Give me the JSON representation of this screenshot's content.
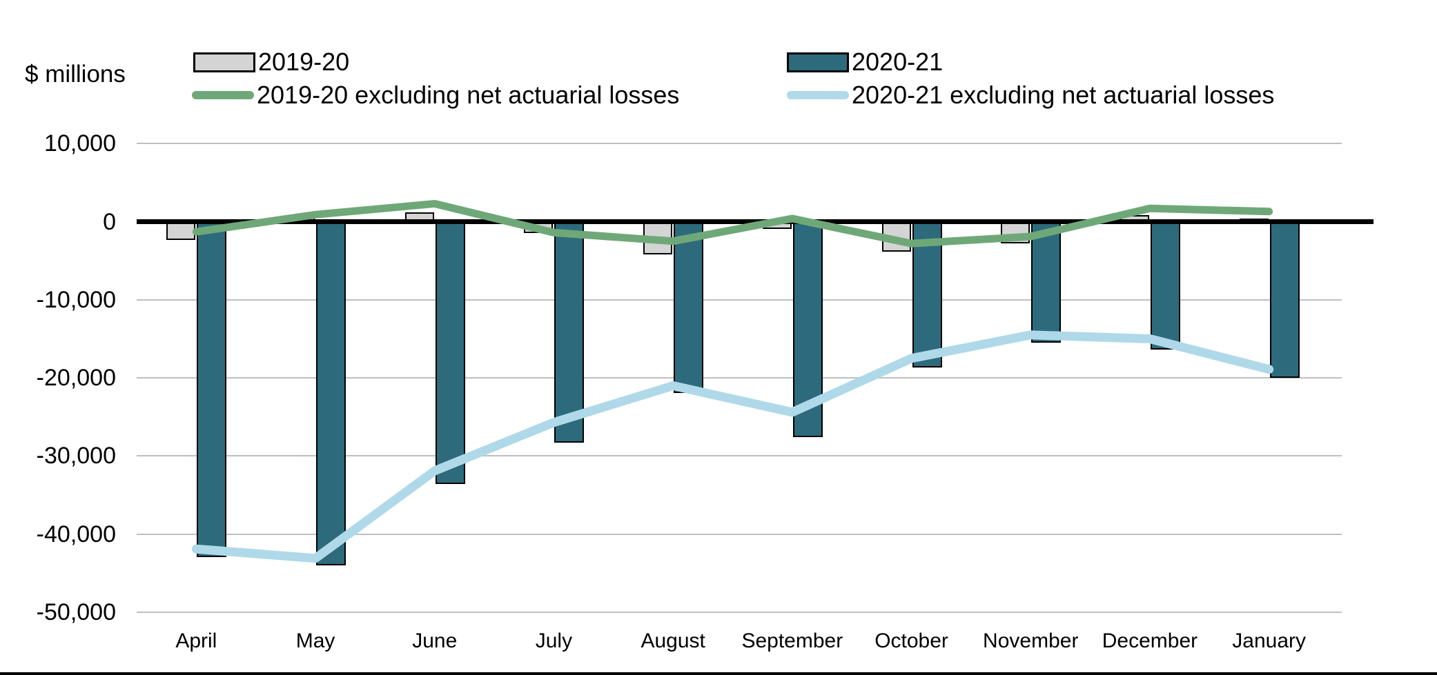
{
  "header": {
    "units_label": "$ millions"
  },
  "legend": [
    {
      "label": "2019-20",
      "type": "bar",
      "color": "#D4D4D4"
    },
    {
      "label": "2020-21",
      "type": "bar",
      "color": "#2D6B7C"
    },
    {
      "label": "2019-20 excluding net actuarial losses",
      "type": "line",
      "color": "#6FA878"
    },
    {
      "label": "2020-21 excluding net actuarial losses",
      "type": "line",
      "color": "#AFD9E9"
    }
  ],
  "chart_data": {
    "type": "bar",
    "title": "",
    "ylabel": "$ millions",
    "xlabel": "",
    "categories": [
      "April",
      "May",
      "June",
      "July",
      "August",
      "September",
      "October",
      "November",
      "December",
      "January"
    ],
    "series": [
      {
        "name": "2019-20",
        "type": "bar",
        "color": "#D4D4D4",
        "values": [
          -2300,
          700,
          1200,
          -1500,
          -4200,
          -900,
          -3800,
          -2800,
          800,
          400
        ]
      },
      {
        "name": "2020-21",
        "type": "bar",
        "color": "#2D6B7C",
        "values": [
          -42900,
          -44000,
          -33600,
          -28300,
          -21900,
          -27600,
          -18700,
          -15500,
          -16400,
          -20000
        ]
      },
      {
        "name": "2019-20 excluding net actuarial losses",
        "type": "line",
        "color": "#6FA878",
        "values": [
          -1300,
          900,
          2300,
          -1400,
          -2500,
          400,
          -2800,
          -1900,
          1700,
          1300
        ]
      },
      {
        "name": "2020-21 excluding net actuarial losses",
        "type": "line",
        "color": "#AFD9E9",
        "values": [
          -41900,
          -43100,
          -31900,
          -25700,
          -21000,
          -24400,
          -17500,
          -14500,
          -15000,
          -18900
        ]
      }
    ],
    "ylim": [
      -50000,
      10000
    ],
    "ytick_step": 10000,
    "ytick_labels": [
      "10,000",
      "0",
      "-10,000",
      "-20,000",
      "-30,000",
      "-40,000",
      "-50,000"
    ],
    "grid": true,
    "legend_position": "top",
    "zero_line": true
  }
}
